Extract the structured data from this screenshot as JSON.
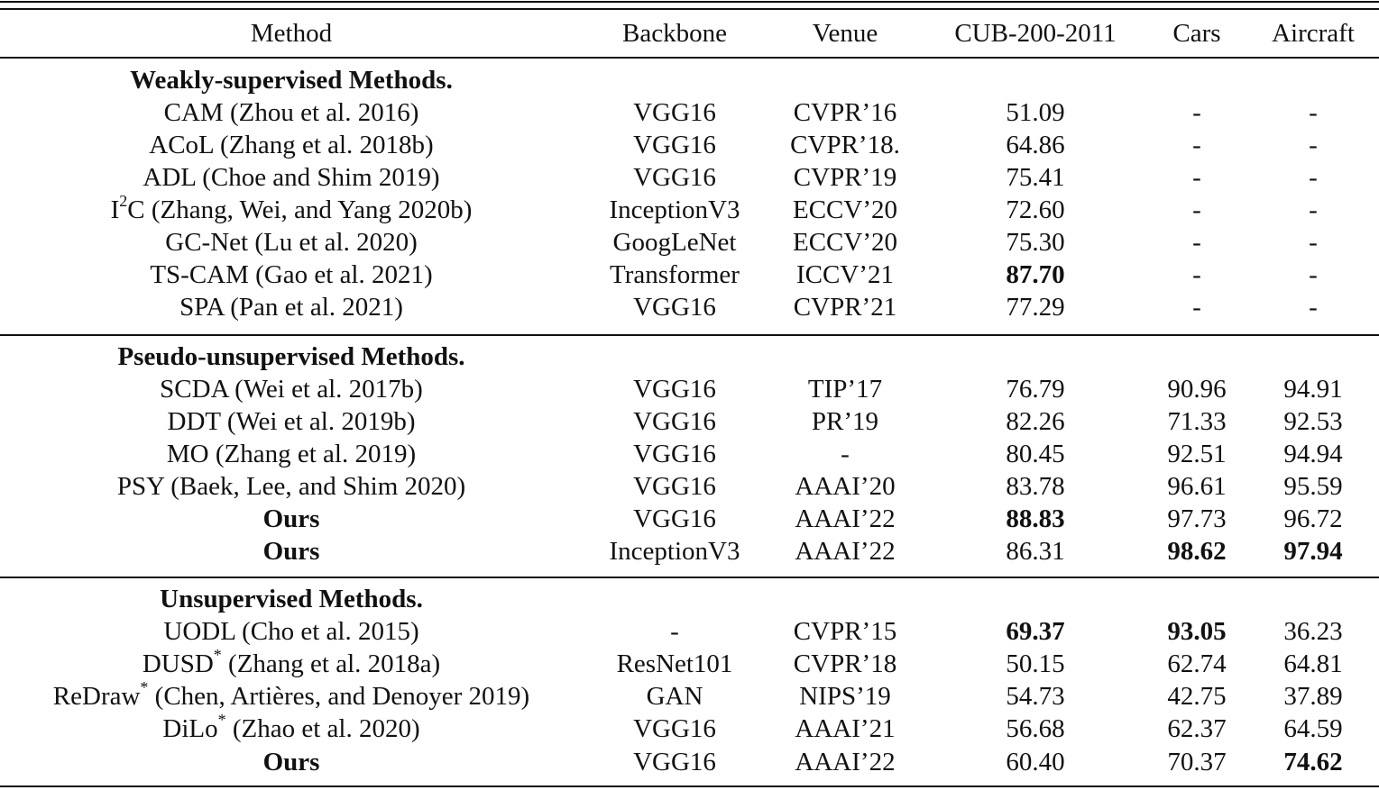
{
  "header": [
    "Method",
    "Backbone",
    "Venue",
    "CUB-200-2011",
    "Cars",
    "Aircraft"
  ],
  "sections": [
    {
      "title": "Weakly-supervised Methods.",
      "rows": [
        {
          "name": "CAM",
          "sup": "",
          "rest": " (Zhou et al. 2016)",
          "backbone": "VGG16",
          "venue": "CVPR’16",
          "cub": "51.09",
          "cars": "-",
          "aircraft": "-",
          "bold": []
        },
        {
          "name": "ACoL",
          "sup": "",
          "rest": " (Zhang et al. 2018b)",
          "backbone": "VGG16",
          "venue": "CVPR’18.",
          "cub": "64.86",
          "cars": "-",
          "aircraft": "-",
          "bold": []
        },
        {
          "name": "ADL",
          "sup": "",
          "rest": " (Choe and Shim 2019)",
          "backbone": "VGG16",
          "venue": "CVPR’19",
          "cub": "75.41",
          "cars": "-",
          "aircraft": "-",
          "bold": []
        },
        {
          "name": "I",
          "sup": "2",
          "rest": "C (Zhang, Wei, and Yang 2020b)",
          "backbone": "InceptionV3",
          "venue": "ECCV’20",
          "cub": "72.60",
          "cars": "-",
          "aircraft": "-",
          "bold": []
        },
        {
          "name": "GC-Net",
          "sup": "",
          "rest": " (Lu et al. 2020)",
          "backbone": "GoogLeNet",
          "venue": "ECCV’20",
          "cub": "75.30",
          "cars": "-",
          "aircraft": "-",
          "bold": []
        },
        {
          "name": "TS-CAM",
          "sup": "",
          "rest": " (Gao et al. 2021)",
          "backbone": "Transformer",
          "venue": "ICCV’21",
          "cub": "87.70",
          "cars": "-",
          "aircraft": "-",
          "bold": [
            "cub"
          ]
        },
        {
          "name": "SPA",
          "sup": "",
          "rest": " (Pan et al. 2021)",
          "backbone": "VGG16",
          "venue": "CVPR’21",
          "cub": "77.29",
          "cars": "-",
          "aircraft": "-",
          "bold": []
        }
      ]
    },
    {
      "title": "Pseudo-unsupervised Methods.",
      "rows": [
        {
          "name": "SCDA",
          "sup": "",
          "rest": " (Wei et al. 2017b)",
          "backbone": "VGG16",
          "venue": "TIP’17",
          "cub": "76.79",
          "cars": "90.96",
          "aircraft": "94.91",
          "bold": []
        },
        {
          "name": "DDT",
          "sup": "",
          "rest": " (Wei et al. 2019b)",
          "backbone": "VGG16",
          "venue": "PR’19",
          "cub": "82.26",
          "cars": "71.33",
          "aircraft": "92.53",
          "bold": []
        },
        {
          "name": "MO",
          "sup": "",
          "rest": " (Zhang et al. 2019)",
          "backbone": "VGG16",
          "venue": "-",
          "cub": "80.45",
          "cars": "92.51",
          "aircraft": "94.94",
          "bold": []
        },
        {
          "name": "PSY",
          "sup": "",
          "rest": " (Baek, Lee, and Shim 2020)",
          "backbone": "VGG16",
          "venue": "AAAI’20",
          "cub": "83.78",
          "cars": "96.61",
          "aircraft": "95.59",
          "bold": []
        },
        {
          "name": "Ours",
          "sup": "",
          "rest": "",
          "backbone": "VGG16",
          "venue": "AAAI’22",
          "cub": "88.83",
          "cars": "97.73",
          "aircraft": "96.72",
          "bold": [
            "name",
            "cub"
          ]
        },
        {
          "name": "Ours",
          "sup": "",
          "rest": "",
          "backbone": "InceptionV3",
          "venue": "AAAI’22",
          "cub": "86.31",
          "cars": "98.62",
          "aircraft": "97.94",
          "bold": [
            "name",
            "cars",
            "aircraft"
          ]
        }
      ]
    },
    {
      "title": "Unsupervised Methods.",
      "rows": [
        {
          "name": "UODL",
          "sup": "",
          "rest": " (Cho et al. 2015)",
          "backbone": "-",
          "venue": "CVPR’15",
          "cub": "69.37",
          "cars": "93.05",
          "aircraft": "36.23",
          "bold": [
            "cub",
            "cars"
          ]
        },
        {
          "name": "DUSD",
          "sup": "*",
          "rest": " (Zhang et al. 2018a)",
          "backbone": "ResNet101",
          "venue": "CVPR’18",
          "cub": "50.15",
          "cars": "62.74",
          "aircraft": "64.81",
          "bold": []
        },
        {
          "name": "ReDraw",
          "sup": "*",
          "rest": " (Chen, Artières, and Denoyer 2019)",
          "backbone": "GAN",
          "venue": "NIPS’19",
          "cub": "54.73",
          "cars": "42.75",
          "aircraft": "37.89",
          "bold": []
        },
        {
          "name": "DiLo",
          "sup": "*",
          "rest": " (Zhao et al. 2020)",
          "backbone": "VGG16",
          "venue": "AAAI’21",
          "cub": "56.68",
          "cars": "62.37",
          "aircraft": "64.59",
          "bold": []
        },
        {
          "name": "Ours",
          "sup": "",
          "rest": "",
          "backbone": "VGG16",
          "venue": "AAAI’22",
          "cub": "60.40",
          "cars": "70.37",
          "aircraft": "74.62",
          "bold": [
            "name",
            "aircraft"
          ]
        }
      ]
    }
  ]
}
